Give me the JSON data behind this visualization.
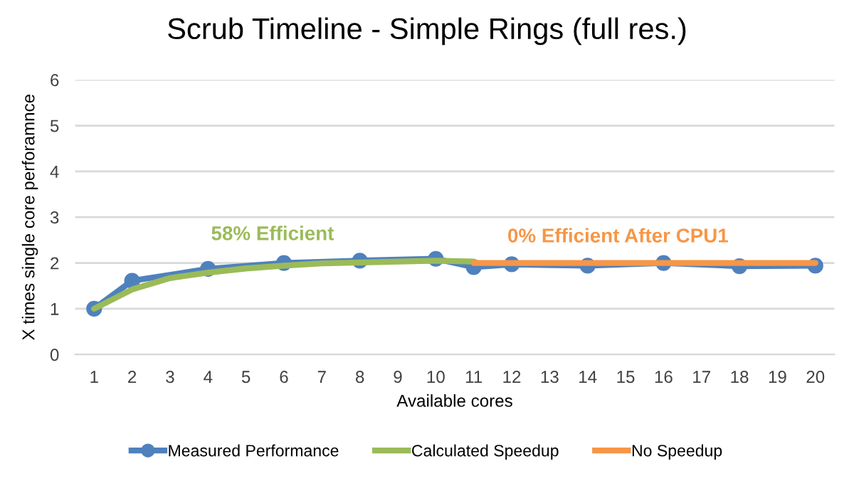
{
  "chart_data": {
    "type": "line",
    "title": "Scrub Timeline - Simple Rings (full res.)",
    "xlabel": "Available cores",
    "ylabel": "X times single core perforamnce",
    "xlim": [
      0.5,
      20.5
    ],
    "xticks": [
      1,
      2,
      3,
      4,
      5,
      6,
      7,
      8,
      9,
      10,
      11,
      12,
      13,
      14,
      15,
      16,
      17,
      18,
      19,
      20
    ],
    "ylim": [
      0,
      6
    ],
    "yticks": [
      0,
      1,
      2,
      3,
      4,
      5,
      6
    ],
    "grid": "y",
    "legend": "bottom",
    "line_style": "solid",
    "series": [
      {
        "name": "Measured Performance",
        "color": "#4f81bd",
        "marker": "circle",
        "x": [
          1,
          2,
          4,
          6,
          8,
          10,
          11,
          12,
          14,
          16,
          18,
          20
        ],
        "values": [
          1.0,
          1.61,
          1.87,
          2.0,
          2.05,
          2.09,
          1.91,
          1.97,
          1.94,
          2.0,
          1.93,
          1.94
        ]
      },
      {
        "name": "Calculated Speedup",
        "color": "#9bbb59",
        "marker": "none",
        "x": [
          1,
          2,
          3,
          4,
          5,
          6,
          7,
          8,
          9,
          10,
          11
        ],
        "values": [
          1.0,
          1.42,
          1.67,
          1.79,
          1.88,
          1.94,
          1.99,
          2.01,
          2.03,
          2.05,
          2.03
        ]
      },
      {
        "name": "No Speedup",
        "color": "#f79646",
        "marker": "none",
        "x": [
          11,
          12,
          13,
          14,
          15,
          16,
          17,
          18,
          19,
          20
        ],
        "values": [
          2,
          2,
          2,
          2,
          2,
          2,
          2,
          2,
          2,
          2
        ]
      }
    ],
    "annotations": [
      "58% Efficient",
      "0% Efficient After CPU1"
    ]
  }
}
